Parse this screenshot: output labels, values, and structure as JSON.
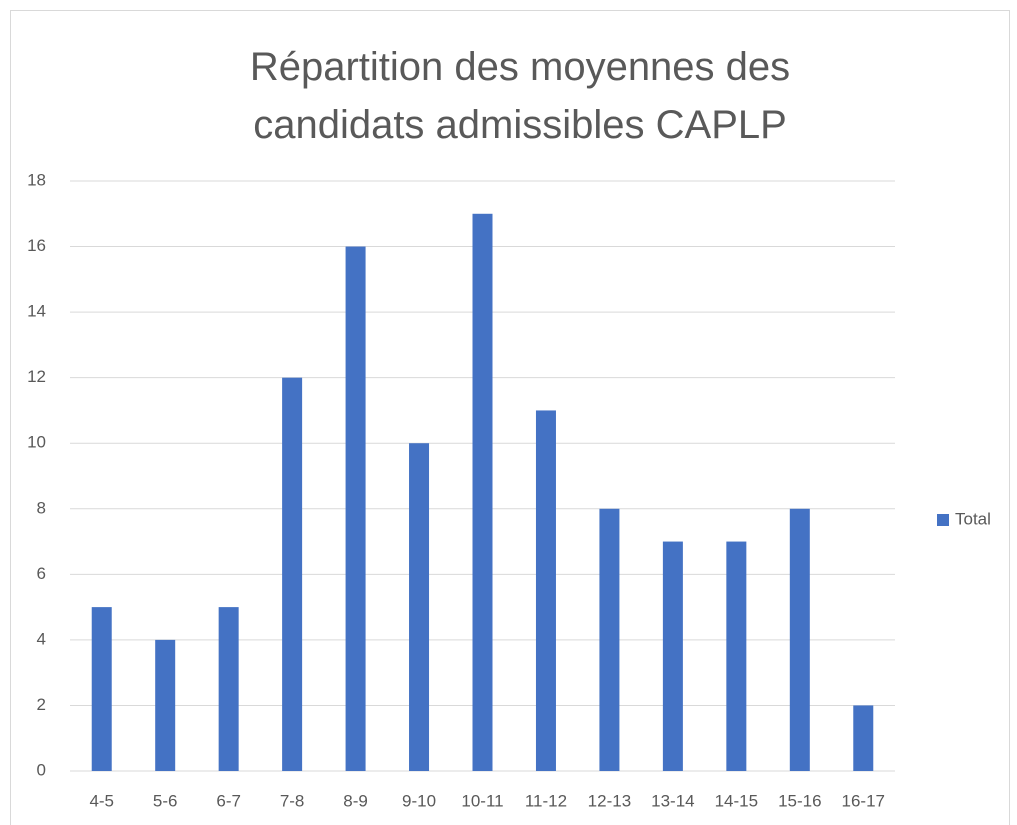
{
  "chart_data": {
    "type": "bar",
    "title": "Répartition des moyennes des candidats admissibles CAPLP",
    "categories": [
      "4-5",
      "5-6",
      "6-7",
      "7-8",
      "8-9",
      "9-10",
      "10-11",
      "11-12",
      "12-13",
      "13-14",
      "14-15",
      "15-16",
      "16-17"
    ],
    "series": [
      {
        "name": "Total",
        "color": "#4472c4",
        "values": [
          5,
          4,
          5,
          12,
          16,
          10,
          17,
          11,
          8,
          7,
          7,
          8,
          2
        ]
      }
    ],
    "ylim": [
      0,
      18
    ],
    "yticks": [
      0,
      2,
      4,
      6,
      8,
      10,
      12,
      14,
      16,
      18
    ],
    "grid": true,
    "legend": "right"
  }
}
